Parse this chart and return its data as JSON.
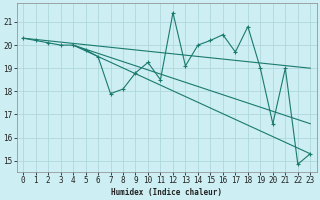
{
  "xlabel": "Humidex (Indice chaleur)",
  "bg_color": "#cdeef2",
  "grid_color": "#b0d8dc",
  "line_color": "#1a7a6e",
  "xlim": [
    -0.5,
    23.5
  ],
  "ylim": [
    14.5,
    21.8
  ],
  "xticks": [
    0,
    1,
    2,
    3,
    4,
    5,
    6,
    7,
    8,
    9,
    10,
    11,
    12,
    13,
    14,
    15,
    16,
    17,
    18,
    19,
    20,
    21,
    22,
    23
  ],
  "yticks": [
    15,
    16,
    17,
    18,
    19,
    20,
    21
  ],
  "series_x": [
    0,
    1,
    2,
    3,
    4,
    5,
    6,
    7,
    8,
    9,
    10,
    11,
    12,
    13,
    14,
    15,
    16,
    17,
    18,
    19,
    20,
    21,
    22,
    23
  ],
  "series_y": [
    20.3,
    20.2,
    20.1,
    20.0,
    20.0,
    19.8,
    19.5,
    17.9,
    18.1,
    18.8,
    19.25,
    18.5,
    21.4,
    19.1,
    20.0,
    20.2,
    20.45,
    19.7,
    20.8,
    19.0,
    16.6,
    19.0,
    14.85,
    15.3
  ],
  "line1_x": [
    0,
    23
  ],
  "line1_y": [
    20.3,
    19.0
  ],
  "line2_x": [
    4,
    23
  ],
  "line2_y": [
    20.0,
    16.6
  ],
  "line3_x": [
    4,
    23
  ],
  "line3_y": [
    20.0,
    15.3
  ],
  "xlabel_fontsize": 5.5,
  "tick_fontsize": 5.5
}
